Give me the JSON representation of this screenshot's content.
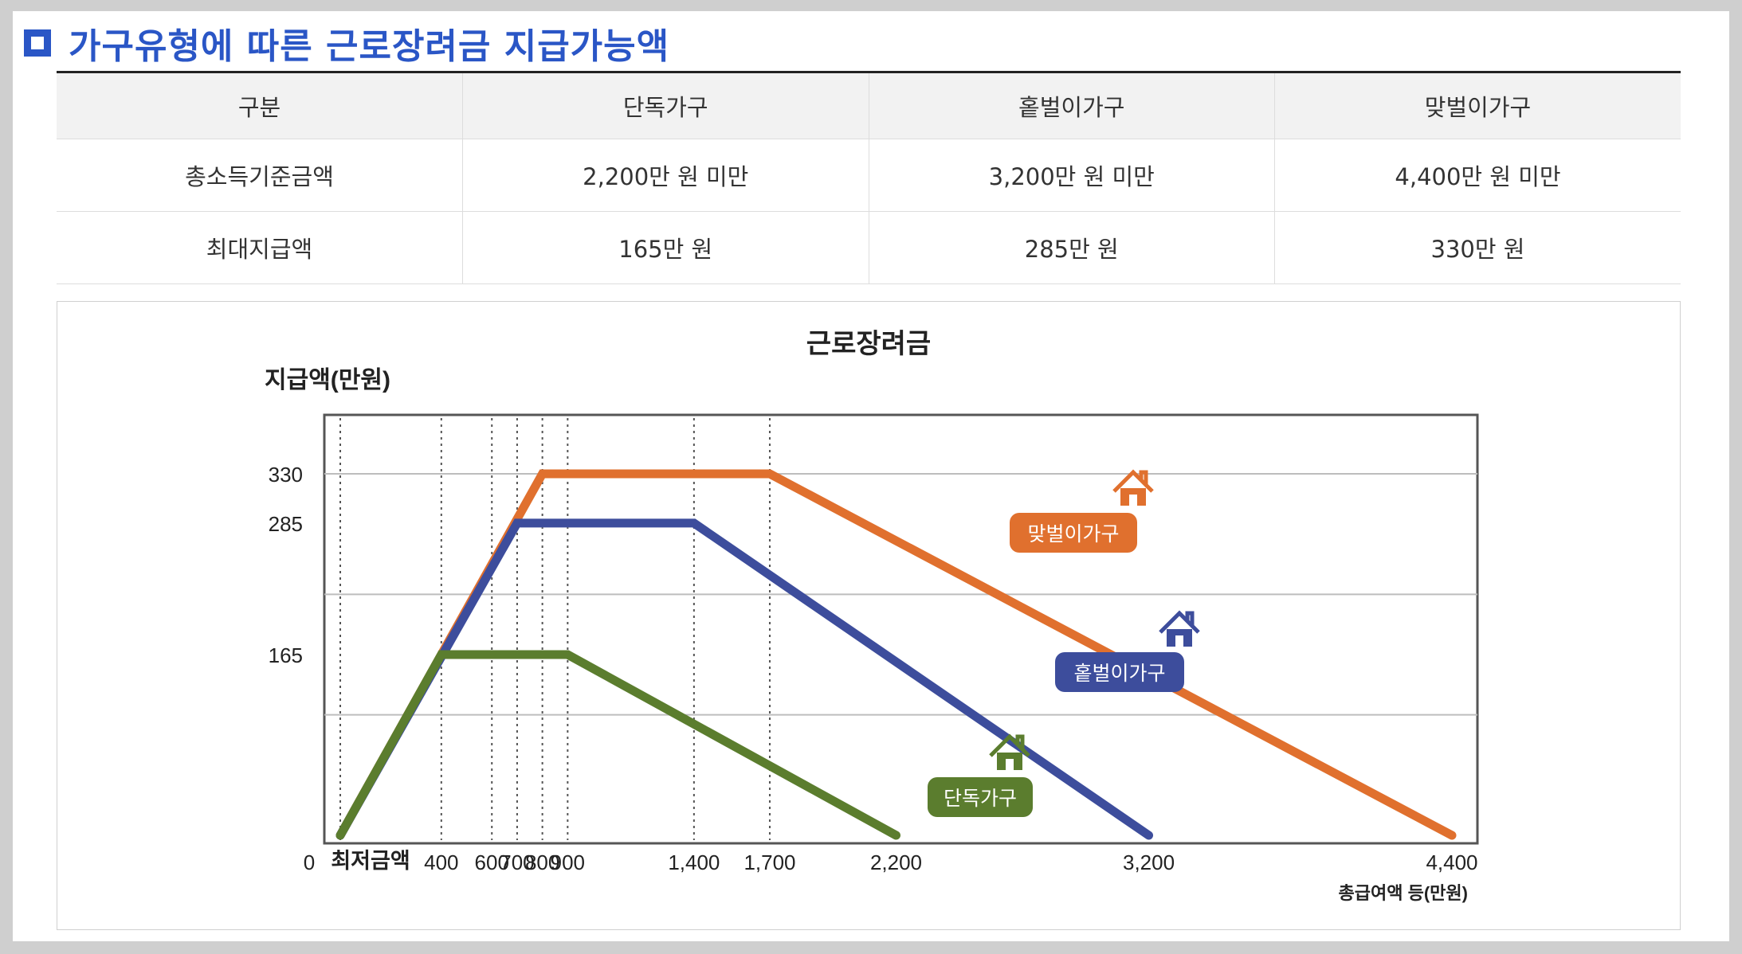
{
  "heading": {
    "title": "가구유형에 따른 근로장려금 지급가능액"
  },
  "table": {
    "headers": [
      "구분",
      "단독가구",
      "홑벌이가구",
      "맞벌이가구"
    ],
    "rows": [
      {
        "label": "총소득기준금액",
        "values": [
          "2,200만 원 미만",
          "3,200만 원 미만",
          "4,400만 원 미만"
        ]
      },
      {
        "label": "최대지급액",
        "values": [
          "165만 원",
          "285만 원",
          "330만 원"
        ]
      }
    ]
  },
  "chart_data": {
    "type": "line",
    "title": "근로장려금",
    "ylabel": "지급액(만원)",
    "xlabel": "총급여액 등(만원)",
    "x_origin_label": "0",
    "x_min_label": "최저금액",
    "x_ticks": [
      {
        "value": 400,
        "label": "400"
      },
      {
        "value": 600,
        "label": "600"
      },
      {
        "value": 700,
        "label": "700"
      },
      {
        "value": 800,
        "label": "800"
      },
      {
        "value": 900,
        "label": "900"
      },
      {
        "value": 1400,
        "label": "1,400"
      },
      {
        "value": 1700,
        "label": "1,700"
      },
      {
        "value": 2200,
        "label": "2,200"
      },
      {
        "value": 3200,
        "label": "3,200"
      },
      {
        "value": 4400,
        "label": "4,400"
      }
    ],
    "y_ticks": [
      {
        "value": 165,
        "label": "165"
      },
      {
        "value": 285,
        "label": "285"
      },
      {
        "value": 330,
        "label": "330"
      }
    ],
    "series": [
      {
        "name": "맞벌이가구",
        "color": "#e0702e",
        "points": [
          [
            0,
            0
          ],
          [
            800,
            330
          ],
          [
            1700,
            330
          ],
          [
            4400,
            0
          ]
        ]
      },
      {
        "name": "홑벌이가구",
        "color": "#3d4d9c",
        "points": [
          [
            0,
            0
          ],
          [
            700,
            285
          ],
          [
            1400,
            285
          ],
          [
            3200,
            0
          ]
        ]
      },
      {
        "name": "단독가구",
        "color": "#5b7d2e",
        "points": [
          [
            0,
            0
          ],
          [
            400,
            165
          ],
          [
            900,
            165
          ],
          [
            2200,
            0
          ]
        ]
      }
    ],
    "grid": true,
    "legend": "inline-labels-with-house-icons"
  }
}
